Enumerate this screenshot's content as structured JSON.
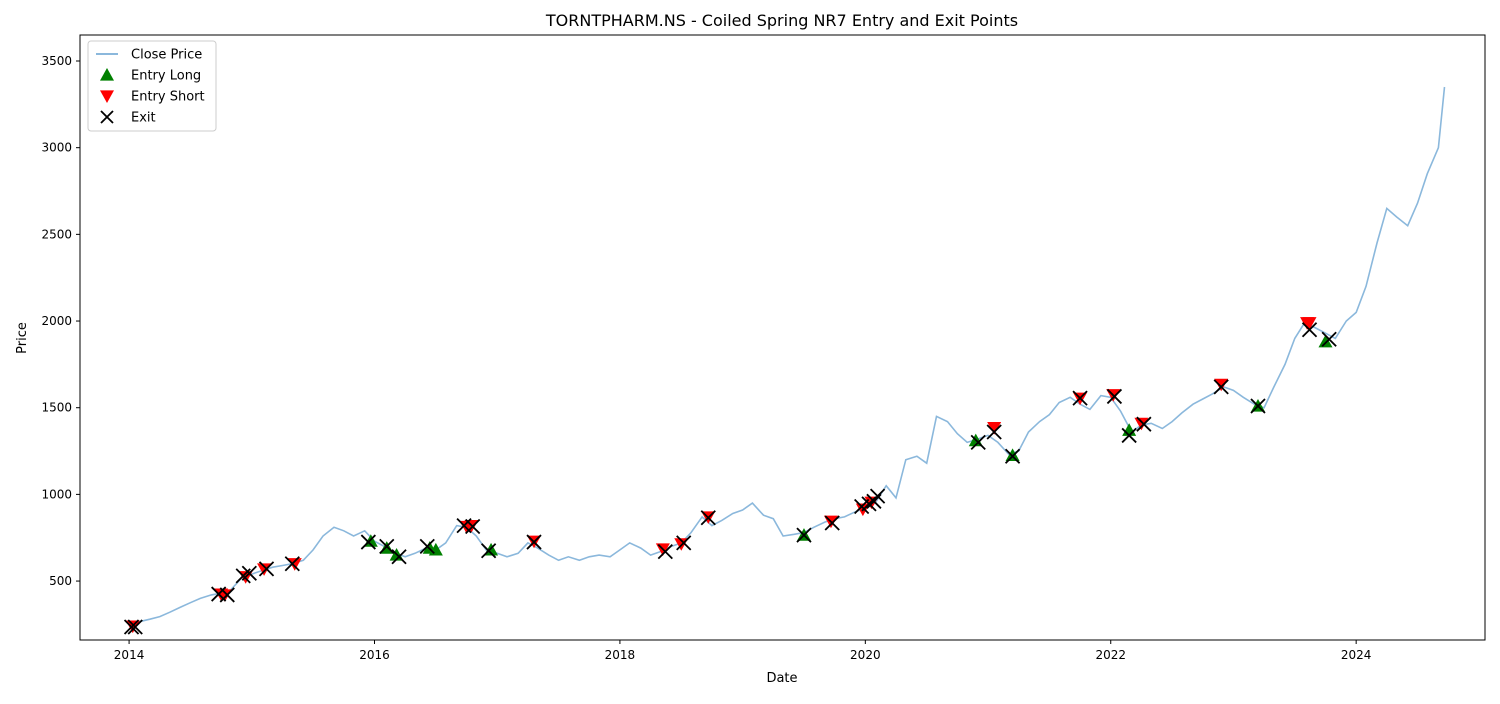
{
  "chart_data": {
    "type": "line",
    "title": "TORNTPHARM.NS - Coiled Spring NR7 Entry and Exit Points",
    "xlabel": "Date",
    "ylabel": "Price",
    "xlim": [
      2013.6,
      2025.05
    ],
    "ylim": [
      160,
      3650
    ],
    "x_ticks": [
      2014,
      2016,
      2018,
      2020,
      2022,
      2024
    ],
    "y_ticks": [
      500,
      1000,
      1500,
      2000,
      2500,
      3000,
      3500
    ],
    "grid": false,
    "legend_position": "top-left",
    "colors": {
      "line": "#8bb8dc",
      "long": "#008000",
      "short": "#ff0000",
      "exit": "#000000"
    },
    "legend": [
      {
        "label": "Close Price",
        "marker": "line"
      },
      {
        "label": "Entry Long",
        "marker": "triangle-up"
      },
      {
        "label": "Entry Short",
        "marker": "triangle-down"
      },
      {
        "label": "Exit",
        "marker": "x"
      }
    ],
    "series": [
      {
        "name": "Close Price",
        "x": [
          2014.0,
          2014.08,
          2014.17,
          2014.25,
          2014.33,
          2014.42,
          2014.5,
          2014.58,
          2014.67,
          2014.75,
          2014.83,
          2014.92,
          2015.0,
          2015.08,
          2015.17,
          2015.25,
          2015.33,
          2015.42,
          2015.5,
          2015.58,
          2015.67,
          2015.75,
          2015.83,
          2015.92,
          2016.0,
          2016.08,
          2016.17,
          2016.25,
          2016.33,
          2016.42,
          2016.5,
          2016.58,
          2016.67,
          2016.75,
          2016.83,
          2016.92,
          2017.0,
          2017.08,
          2017.17,
          2017.25,
          2017.33,
          2017.42,
          2017.5,
          2017.58,
          2017.67,
          2017.75,
          2017.83,
          2017.92,
          2018.0,
          2018.08,
          2018.17,
          2018.25,
          2018.33,
          2018.42,
          2018.5,
          2018.58,
          2018.67,
          2018.75,
          2018.83,
          2018.92,
          2019.0,
          2019.08,
          2019.17,
          2019.25,
          2019.33,
          2019.42,
          2019.5,
          2019.58,
          2019.67,
          2019.75,
          2019.83,
          2019.92,
          2020.0,
          2020.08,
          2020.17,
          2020.25,
          2020.33,
          2020.42,
          2020.5,
          2020.58,
          2020.67,
          2020.75,
          2020.83,
          2020.92,
          2021.0,
          2021.08,
          2021.17,
          2021.25,
          2021.33,
          2021.42,
          2021.5,
          2021.58,
          2021.67,
          2021.75,
          2021.83,
          2021.92,
          2022.0,
          2022.08,
          2022.17,
          2022.25,
          2022.33,
          2022.42,
          2022.5,
          2022.58,
          2022.67,
          2022.75,
          2022.83,
          2022.92,
          2023.0,
          2023.08,
          2023.17,
          2023.25,
          2023.33,
          2023.42,
          2023.5,
          2023.58,
          2023.67,
          2023.75,
          2023.83,
          2023.92,
          2024.0,
          2024.08,
          2024.17,
          2024.25,
          2024.33,
          2024.42,
          2024.5,
          2024.58,
          2024.67,
          2024.72
        ],
        "values": [
          240,
          265,
          280,
          295,
          320,
          350,
          375,
          400,
          420,
          430,
          450,
          520,
          540,
          560,
          580,
          590,
          600,
          620,
          680,
          760,
          810,
          790,
          760,
          790,
          730,
          700,
          660,
          640,
          660,
          690,
          680,
          720,
          820,
          810,
          760,
          670,
          660,
          640,
          660,
          720,
          690,
          650,
          620,
          640,
          620,
          640,
          650,
          640,
          680,
          720,
          690,
          650,
          670,
          700,
          720,
          780,
          870,
          820,
          850,
          890,
          910,
          950,
          880,
          860,
          760,
          770,
          780,
          810,
          840,
          860,
          870,
          900,
          920,
          950,
          1050,
          980,
          1200,
          1220,
          1180,
          1450,
          1420,
          1350,
          1300,
          1320,
          1340,
          1300,
          1230,
          1250,
          1360,
          1420,
          1460,
          1530,
          1560,
          1520,
          1490,
          1570,
          1560,
          1480,
          1360,
          1400,
          1410,
          1380,
          1420,
          1470,
          1520,
          1550,
          1580,
          1620,
          1600,
          1560,
          1520,
          1500,
          1620,
          1750,
          1900,
          1990,
          1960,
          1930,
          1900,
          2000,
          2050,
          2200,
          2450,
          2650,
          2600,
          2550,
          2680,
          2850,
          3000,
          3350
        ]
      }
    ],
    "entry_long": {
      "x": [
        2015.97,
        2016.1,
        2016.18,
        2016.45,
        2016.5,
        2016.95,
        2019.5,
        2020.9,
        2021.2,
        2022.15,
        2023.2,
        2023.75
      ],
      "y": [
        730,
        690,
        650,
        690,
        680,
        680,
        765,
        1310,
        1225,
        1370,
        1510,
        1880
      ]
    },
    "entry_short": {
      "x": [
        2014.03,
        2014.75,
        2014.78,
        2014.95,
        2015.1,
        2015.35,
        2016.75,
        2016.79,
        2017.3,
        2018.35,
        2018.5,
        2018.72,
        2019.72,
        2019.98,
        2020.05,
        2021.05,
        2021.75,
        2022.02,
        2022.25,
        2022.9,
        2023.6,
        2023.62
      ],
      "y": [
        240,
        425,
        420,
        525,
        570,
        600,
        815,
        820,
        730,
        685,
        715,
        870,
        845,
        915,
        955,
        1385,
        1555,
        1575,
        1410,
        1635,
        1990,
        1990
      ]
    },
    "exit": {
      "x": [
        2014.02,
        2014.05,
        2014.73,
        2014.8,
        2014.93,
        2014.98,
        2015.12,
        2015.33,
        2015.95,
        2016.1,
        2016.2,
        2016.43,
        2016.73,
        2016.8,
        2016.93,
        2017.3,
        2018.37,
        2018.52,
        2018.72,
        2019.5,
        2019.73,
        2019.97,
        2020.03,
        2020.07,
        2020.1,
        2020.92,
        2021.05,
        2021.2,
        2021.75,
        2022.03,
        2022.15,
        2022.27,
        2022.9,
        2023.2,
        2023.62,
        2023.78
      ],
      "y": [
        235,
        235,
        425,
        420,
        530,
        545,
        570,
        600,
        725,
        700,
        640,
        700,
        820,
        815,
        675,
        725,
        670,
        720,
        865,
        765,
        835,
        930,
        945,
        960,
        990,
        1300,
        1360,
        1220,
        1555,
        1565,
        1340,
        1405,
        1620,
        1510,
        1950,
        1895
      ]
    }
  }
}
